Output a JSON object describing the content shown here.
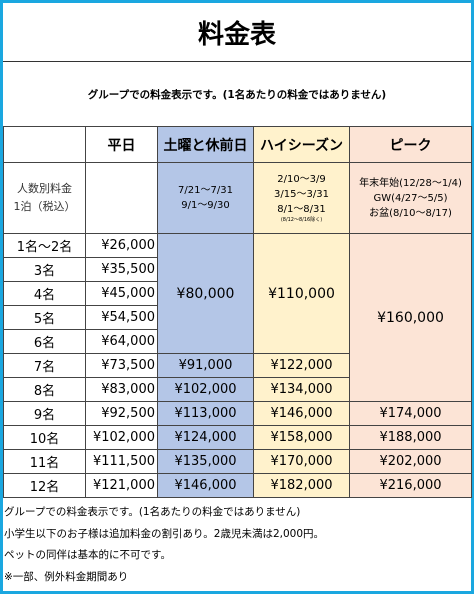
{
  "title": "料金表",
  "subtitle": "グループでの料金表示です。(1名あたりの料金ではありません)",
  "table": {
    "corner_label": [
      "人数別料金",
      "1泊（税込）"
    ],
    "columns": [
      {
        "label": "平日"
      },
      {
        "label": "土曜と休前日",
        "periods": [
          "7/21〜7/31",
          "9/1〜9/30"
        ]
      },
      {
        "label": "ハイシーズン",
        "periods": [
          "2/10〜3/9",
          "3/15〜3/31",
          "8/1〜8/31"
        ],
        "note": "(8/12〜8/16除く)"
      },
      {
        "label": "ピーク",
        "periods": [
          "年末年始(12/28〜1/4)",
          "GW(4/27〜5/5)",
          "お盆(8/10〜8/17)"
        ]
      }
    ],
    "rows": [
      {
        "people": "1名〜2名",
        "weekday": "¥26,000"
      },
      {
        "people": "3名",
        "weekday": "¥35,500"
      },
      {
        "people": "4名",
        "weekday": "¥45,000"
      },
      {
        "people": "5名",
        "weekday": "¥54,500"
      },
      {
        "people": "6名",
        "weekday": "¥64,000"
      },
      {
        "people": "7名",
        "weekday": "¥73,500",
        "saturday": "¥91,000",
        "high": "¥122,000"
      },
      {
        "people": "8名",
        "weekday": "¥83,000",
        "saturday": "¥102,000",
        "high": "¥134,000"
      },
      {
        "people": "9名",
        "weekday": "¥92,500",
        "saturday": "¥113,000",
        "high": "¥146,000",
        "peak": "¥174,000"
      },
      {
        "people": "10名",
        "weekday": "¥102,000",
        "saturday": "¥124,000",
        "high": "¥158,000",
        "peak": "¥188,000"
      },
      {
        "people": "11名",
        "weekday": "¥111,500",
        "saturday": "¥135,000",
        "high": "¥170,000",
        "peak": "¥202,000"
      },
      {
        "people": "12名",
        "weekday": "¥121,000",
        "saturday": "¥146,000",
        "high": "¥182,000",
        "peak": "¥216,000"
      }
    ],
    "merged": {
      "saturday_1_6": "¥80,000",
      "high_1_6": "¥110,000",
      "peak_1_8": "¥160,000"
    }
  },
  "notes": [
    "グループでの料金表示です。(1名あたりの料金ではありません)",
    "小学生以下のお子様は追加料金の割引あり。2歳児未満は2,000円。",
    "ペットの同伴は基本的に不可です。",
    "※一部、例外料金期間あり"
  ],
  "colors": {
    "border": "#1aa7e0",
    "saturday": "#b4c6e7",
    "high_season": "#fff2cc",
    "peak": "#fce4d6"
  }
}
